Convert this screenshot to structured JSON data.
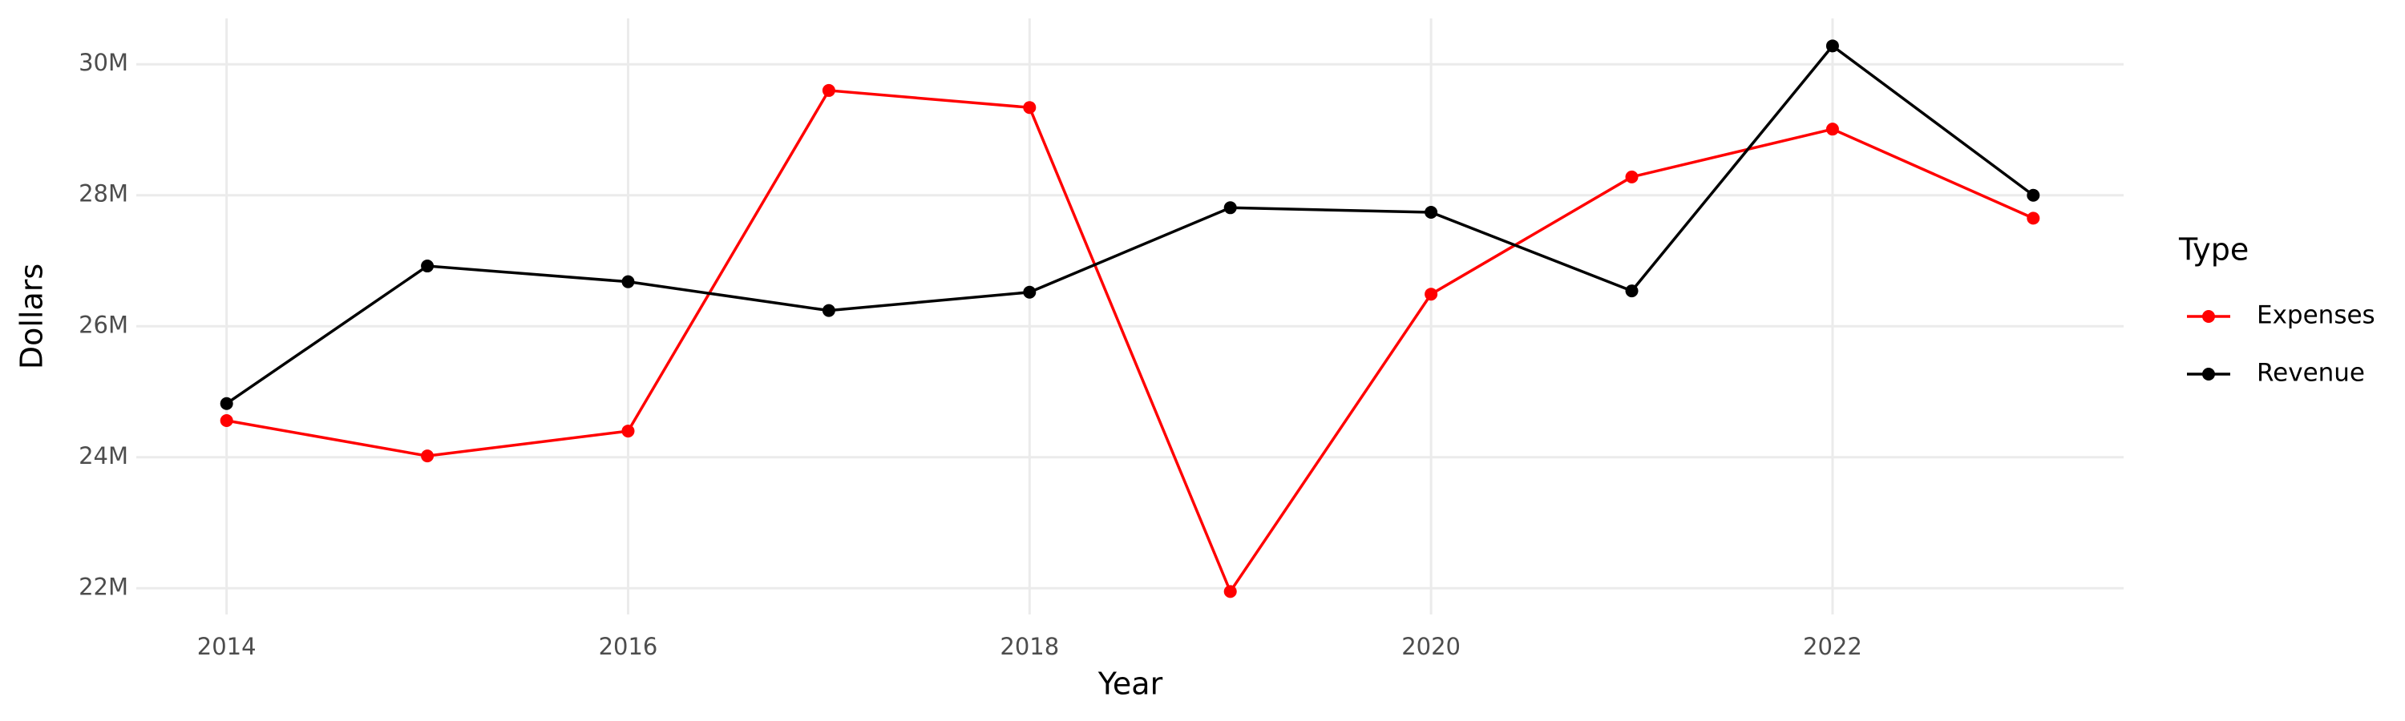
{
  "chart_data": {
    "type": "line",
    "x_label": "Year",
    "y_label": "Dollars",
    "legend_title": "Type",
    "x": [
      2014,
      2015,
      2016,
      2017,
      2018,
      2019,
      2020,
      2021,
      2022,
      2023
    ],
    "series": [
      {
        "name": "Expenses",
        "color": "#ff0000",
        "values": [
          24560000,
          24020000,
          24400000,
          29600000,
          29340000,
          21950000,
          26490000,
          28280000,
          29010000,
          27650000
        ]
      },
      {
        "name": "Revenue",
        "color": "#000000",
        "values": [
          24820000,
          26920000,
          26680000,
          26240000,
          26520000,
          27810000,
          27740000,
          26540000,
          30280000,
          28000000
        ]
      }
    ],
    "xlim": [
      2013.55,
      2023.45
    ],
    "xticks": [
      2014,
      2016,
      2018,
      2020,
      2022
    ],
    "ylim": [
      21600000,
      30700000
    ],
    "yticks": [
      {
        "value": 22000000,
        "label": "22M"
      },
      {
        "value": 24000000,
        "label": "24M"
      },
      {
        "value": 26000000,
        "label": "26M"
      },
      {
        "value": 28000000,
        "label": "28M"
      },
      {
        "value": 30000000,
        "label": "30M"
      }
    ],
    "grid": true,
    "legend_position": "right"
  }
}
